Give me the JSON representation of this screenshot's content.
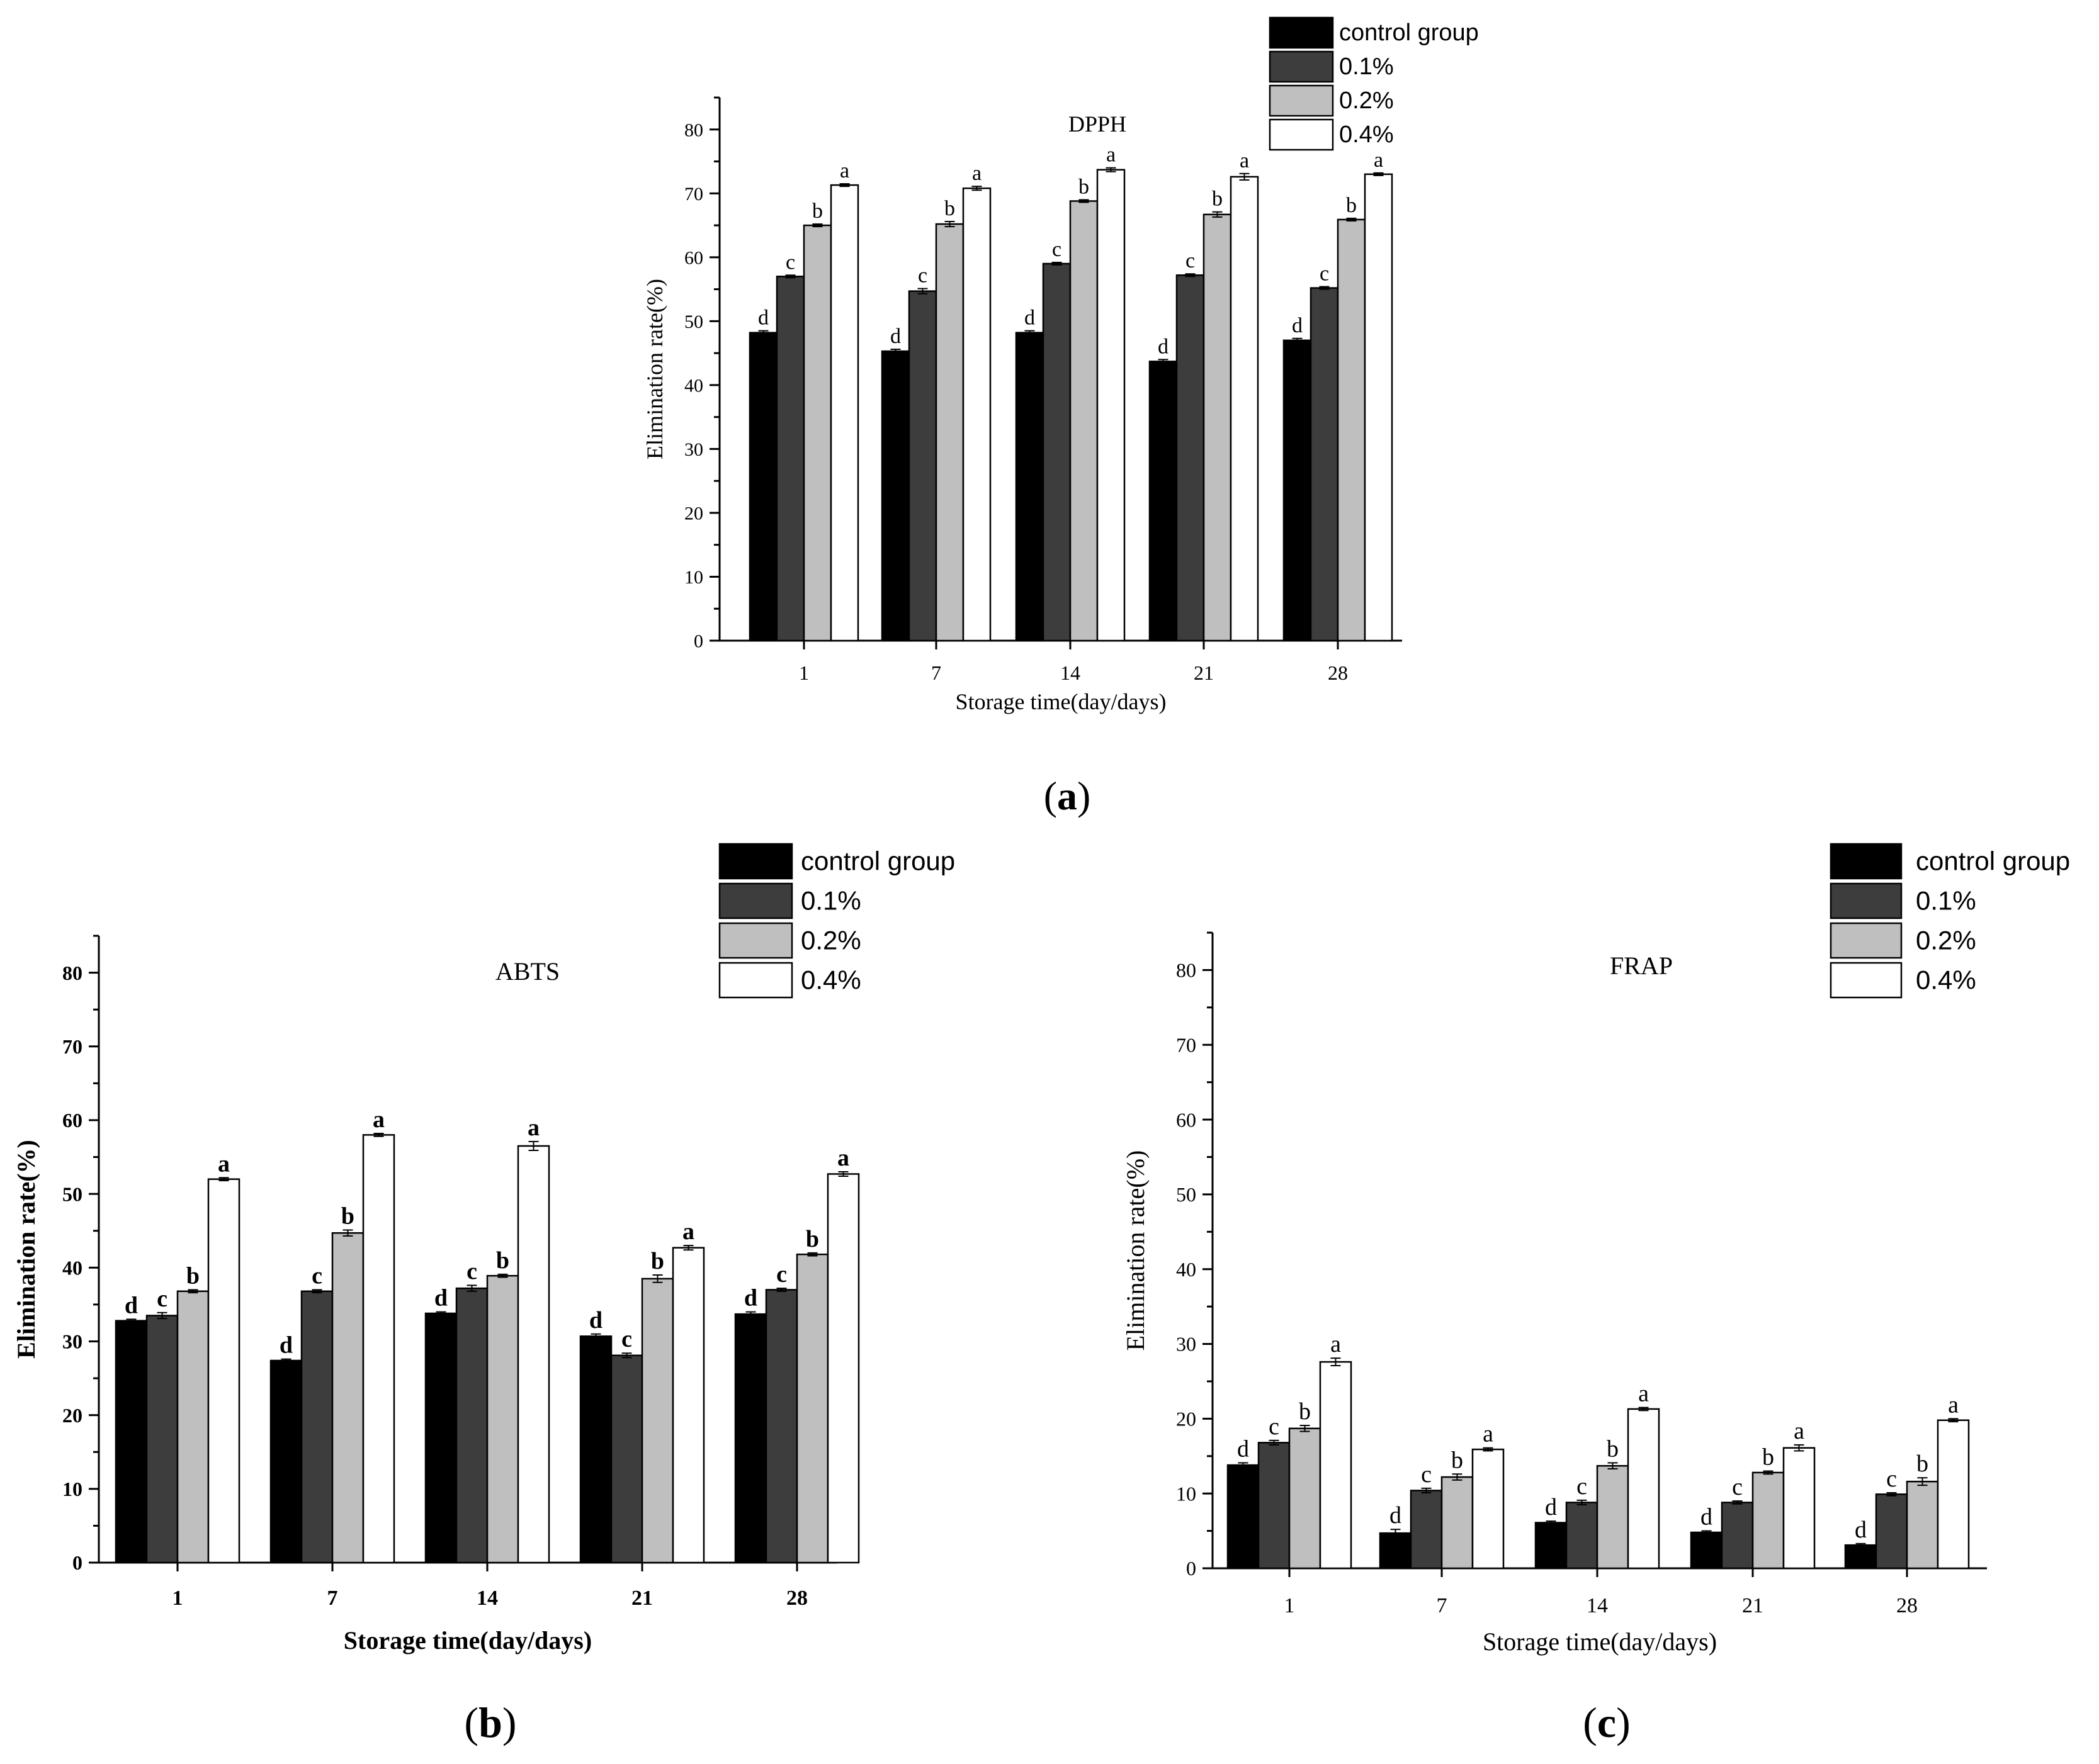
{
  "chart_data": [
    {
      "type": "bar",
      "panel_label": "a",
      "title": "DPPH",
      "xlabel": "Storage time(day/days)",
      "ylabel": "Elimination rate(%)",
      "ylim": [
        0,
        85
      ],
      "yticks": [
        "0",
        "10",
        "20",
        "30",
        "40",
        "50",
        "60",
        "70",
        "80"
      ],
      "categories": [
        "1",
        "7",
        "14",
        "21",
        "28"
      ],
      "bold": false,
      "legend_position": "top-right",
      "series": [
        {
          "name": "control group",
          "color": "#000000",
          "values": [
            48.2,
            45.3,
            48.2,
            43.7,
            47.0
          ],
          "errors": [
            0.3,
            0.3,
            0.3,
            0.3,
            0.3
          ],
          "letters": [
            "d",
            "d",
            "d",
            "d",
            "d"
          ]
        },
        {
          "name": "0.1%",
          "color": "#3d3d3d",
          "values": [
            57.0,
            54.7,
            59.0,
            57.2,
            55.2
          ],
          "errors": [
            0.2,
            0.4,
            0.2,
            0.2,
            0.2
          ],
          "letters": [
            "c",
            "c",
            "c",
            "c",
            "c"
          ]
        },
        {
          "name": "0.2%",
          "color": "#bfbfbf",
          "values": [
            65.0,
            65.2,
            68.8,
            66.7,
            65.9
          ],
          "errors": [
            0.2,
            0.4,
            0.2,
            0.4,
            0.2
          ],
          "letters": [
            "b",
            "b",
            "b",
            "b",
            "b"
          ]
        },
        {
          "name": "0.4%",
          "color": "#ffffff",
          "values": [
            71.3,
            70.8,
            73.7,
            72.6,
            73.0
          ],
          "errors": [
            0.2,
            0.3,
            0.3,
            0.5,
            0.2
          ],
          "letters": [
            "a",
            "a",
            "a",
            "a",
            "a"
          ]
        }
      ]
    },
    {
      "type": "bar",
      "panel_label": "b",
      "title": "ABTS",
      "xlabel": "Storage time(day/days)",
      "ylabel": "Elimination rate(%)",
      "ylim": [
        0,
        85
      ],
      "yticks": [
        "0",
        "10",
        "20",
        "30",
        "40",
        "50",
        "60",
        "70",
        "80"
      ],
      "categories": [
        "1",
        "7",
        "14",
        "21",
        "28"
      ],
      "bold": true,
      "legend_position": "top-right",
      "series": [
        {
          "name": "control group",
          "color": "#000000",
          "values": [
            32.8,
            27.4,
            33.8,
            30.7,
            33.7
          ],
          "errors": [
            0.2,
            0.2,
            0.2,
            0.3,
            0.3
          ],
          "letters": [
            "d",
            "d",
            "d",
            "d",
            "d"
          ]
        },
        {
          "name": "0.1%",
          "color": "#3d3d3d",
          "values": [
            33.5,
            36.8,
            37.2,
            28.1,
            37.0
          ],
          "errors": [
            0.4,
            0.2,
            0.4,
            0.3,
            0.2
          ],
          "letters": [
            "c",
            "c",
            "c",
            "c",
            "c"
          ]
        },
        {
          "name": "0.2%",
          "color": "#bfbfbf",
          "values": [
            36.8,
            44.7,
            38.9,
            38.5,
            41.8
          ],
          "errors": [
            0.2,
            0.4,
            0.2,
            0.5,
            0.2
          ],
          "letters": [
            "b",
            "b",
            "b",
            "b",
            "b"
          ]
        },
        {
          "name": "0.4%",
          "color": "#ffffff",
          "values": [
            52.0,
            58.0,
            56.5,
            42.7,
            52.7
          ],
          "errors": [
            0.2,
            0.2,
            0.6,
            0.3,
            0.3
          ],
          "letters": [
            "a",
            "a",
            "a",
            "a",
            "a"
          ]
        }
      ]
    },
    {
      "type": "bar",
      "panel_label": "c",
      "title": "FRAP",
      "xlabel": "Storage time(day/days)",
      "ylabel": "Elimination rate(%)",
      "ylim": [
        0,
        85
      ],
      "yticks": [
        "0",
        "10",
        "20",
        "30",
        "40",
        "50",
        "60",
        "70",
        "80"
      ],
      "categories": [
        "1",
        "7",
        "14",
        "21",
        "28"
      ],
      "bold": false,
      "legend_position": "top-right",
      "series": [
        {
          "name": "control group",
          "color": "#000000",
          "values": [
            13.8,
            4.7,
            6.1,
            4.8,
            3.1
          ],
          "errors": [
            0.3,
            0.5,
            0.2,
            0.2,
            0.2
          ],
          "letters": [
            "d",
            "d",
            "d",
            "d",
            "d"
          ]
        },
        {
          "name": "0.1%",
          "color": "#3d3d3d",
          "values": [
            16.8,
            10.4,
            8.8,
            8.8,
            9.9
          ],
          "errors": [
            0.3,
            0.3,
            0.3,
            0.2,
            0.2
          ],
          "letters": [
            "c",
            "c",
            "c",
            "c",
            "c"
          ]
        },
        {
          "name": "0.2%",
          "color": "#bfbfbf",
          "values": [
            18.7,
            12.2,
            13.7,
            12.8,
            11.6
          ],
          "errors": [
            0.4,
            0.4,
            0.4,
            0.2,
            0.5
          ],
          "letters": [
            "b",
            "b",
            "b",
            "b",
            "b"
          ]
        },
        {
          "name": "0.4%",
          "color": "#ffffff",
          "values": [
            27.6,
            15.9,
            21.3,
            16.1,
            19.8
          ],
          "errors": [
            0.5,
            0.2,
            0.2,
            0.4,
            0.2
          ],
          "letters": [
            "a",
            "a",
            "a",
            "a",
            "a"
          ]
        }
      ]
    }
  ]
}
